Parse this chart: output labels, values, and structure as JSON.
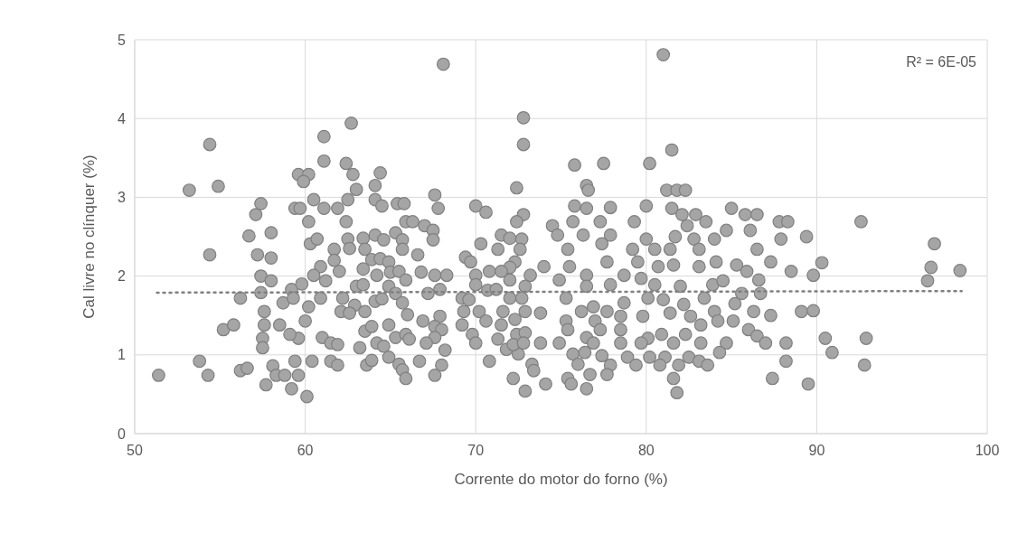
{
  "chart_data": {
    "type": "scatter",
    "xlabel": "Corrente do motor do forno (%)",
    "ylabel": "Cal livre no clínquer (%)",
    "xlim": [
      50,
      100
    ],
    "xticks": [
      50,
      60,
      70,
      80,
      90,
      100
    ],
    "ylim": [
      0,
      5
    ],
    "yticks": [
      0,
      1,
      2,
      3,
      4,
      5
    ],
    "grid": true,
    "annotations": [
      "R² = 6E-05"
    ],
    "series": [
      {
        "color": "#a5a5a5",
        "marker": "circle",
        "x": [
          51.4,
          53.2,
          54.4,
          54.9,
          54.4,
          53.8,
          54.3,
          55.2,
          55.8,
          56.2,
          56.6,
          56.2,
          56.7,
          57.1,
          57.4,
          58.0,
          57.2,
          58.0,
          57.4,
          58.0,
          57.4,
          57.6,
          57.6,
          57.5,
          57.5,
          58.1,
          58.3,
          57.7,
          58.8,
          58.5,
          58.7,
          59.2,
          59.2,
          60.1,
          59.6,
          59.4,
          60.4,
          59.6,
          59.1,
          60.0,
          60.2,
          59.3,
          59.8,
          59.6,
          60.2,
          59.9,
          59.4,
          59.7,
          60.5,
          60.2,
          60.3,
          60.7,
          60.9,
          60.5,
          61.2,
          60.9,
          61.0,
          61.5,
          61.9,
          61.5,
          61.9,
          61.1,
          61.1,
          61.1,
          61.9,
          62.4,
          62.8,
          62.7,
          63.0,
          62.5,
          62.4,
          61.7,
          61.7,
          62.0,
          62.5,
          62.6,
          63.4,
          63.5,
          64.1,
          64.6,
          63.9,
          64.4,
          63.4,
          64.2,
          63.0,
          63.4,
          62.2,
          62.9,
          62.1,
          62.6,
          63.5,
          64.1,
          64.5,
          63.5,
          63.9,
          64.2,
          64.6,
          63.2,
          63.6,
          63.9,
          64.9,
          65.5,
          65.7,
          65.9,
          64.4,
          64.1,
          64.1,
          64.5,
          65.4,
          65.8,
          65.9,
          66.3,
          65.3,
          65.7,
          65.7,
          64.9,
          65.0,
          65.5,
          65.9,
          64.9,
          65.3,
          65.7,
          64.9,
          65.3,
          65.9,
          66.1,
          66.0,
          66.6,
          67.0,
          67.5,
          67.5,
          67.6,
          67.8,
          68.1,
          66.8,
          67.6,
          68.3,
          67.9,
          67.2,
          66.9,
          67.9,
          67.6,
          68.0,
          67.6,
          67.1,
          68.2,
          66.7,
          68.0,
          67.6,
          70.0,
          70.6,
          70.3,
          69.4,
          69.7,
          70.0,
          70.0,
          69.2,
          69.6,
          69.3,
          69.2,
          69.8,
          70.0,
          70.8,
          70.2,
          70.8,
          70.7,
          70.6,
          71.3,
          71.5,
          72.0,
          72.4,
          72.8,
          72.4,
          72.8,
          72.8,
          72.7,
          72.6,
          72.3,
          72.0,
          72.0,
          71.5,
          71.2,
          72.0,
          72.7,
          72.9,
          73.2,
          71.6,
          72.3,
          72.9,
          71.5,
          71.3,
          71.8,
          72.4,
          72.9,
          72.5,
          73.3,
          73.4,
          72.2,
          72.9,
          72.2,
          72.8,
          75.8,
          77.5,
          80.2,
          81.0,
          81.5,
          76.5,
          76.6,
          81.2,
          81.8,
          82.3,
          75.8,
          76.5,
          77.9,
          80.0,
          81.5,
          82.1,
          82.9,
          85.0,
          85.8,
          86.5,
          83.5,
          82.4,
          75.7,
          77.3,
          79.3,
          87.8,
          88.3,
          92.6,
          74.5,
          74.8,
          76.3,
          77.9,
          80.0,
          81.7,
          82.8,
          84.0,
          84.7,
          86.1,
          87.9,
          89.4,
          96.9,
          75.4,
          77.4,
          79.2,
          80.5,
          81.4,
          83.1,
          86.5,
          74.0,
          75.5,
          77.7,
          79.5,
          80.7,
          81.6,
          83.1,
          84.1,
          85.3,
          85.9,
          87.3,
          88.5,
          90.3,
          96.7,
          96.5,
          89.8,
          74.9,
          76.5,
          77.9,
          78.7,
          79.7,
          80.5,
          82.0,
          83.9,
          84.5,
          86.6,
          75.3,
          76.5,
          76.9,
          77.7,
          78.7,
          80.1,
          81.0,
          82.2,
          83.4,
          85.6,
          85.2,
          86.7,
          84.0,
          86.3,
          87.3,
          89.1,
          89.8,
          73.8,
          75.3,
          76.2,
          77.0,
          78.5,
          79.8,
          81.4,
          82.6,
          84.2,
          85.1,
          83.2,
          75.4,
          76.5,
          77.3,
          78.5,
          80.1,
          80.9,
          82.3,
          73.8,
          74.9,
          76.9,
          78.5,
          79.7,
          81.6,
          83.2,
          84.7,
          86.0,
          86.5,
          87.0,
          88.2,
          90.5,
          92.9,
          90.9,
          75.7,
          76.4,
          77.4,
          78.9,
          80.2,
          81.1,
          82.5,
          84.3,
          88.2,
          92.8,
          76.0,
          77.9,
          79.4,
          80.8,
          81.9,
          83.1,
          83.6,
          75.4,
          75.6,
          74.1,
          76.5,
          76.7,
          77.7,
          81.6,
          81.8,
          87.4,
          89.5,
          98.4
        ],
        "values": [
          0.74,
          3.09,
          3.67,
          3.14,
          2.27,
          0.92,
          0.74,
          1.32,
          1.38,
          0.8,
          0.83,
          1.72,
          2.51,
          2.78,
          2.92,
          2.55,
          2.27,
          2.23,
          2.0,
          1.94,
          1.79,
          1.55,
          1.38,
          1.21,
          1.09,
          0.86,
          0.74,
          0.62,
          0.74,
          1.38,
          1.66,
          1.83,
          0.57,
          0.47,
          0.74,
          0.92,
          0.92,
          1.21,
          1.26,
          1.43,
          1.61,
          1.72,
          1.9,
          3.29,
          3.29,
          3.2,
          2.86,
          2.86,
          2.97,
          2.69,
          2.41,
          2.47,
          2.12,
          2.01,
          1.94,
          1.72,
          1.22,
          1.15,
          1.13,
          0.92,
          0.87,
          3.77,
          3.46,
          2.86,
          2.86,
          3.43,
          3.29,
          3.94,
          3.1,
          2.97,
          2.69,
          2.34,
          2.2,
          2.06,
          2.47,
          2.35,
          2.48,
          2.34,
          2.52,
          2.46,
          2.21,
          2.22,
          2.09,
          2.01,
          1.87,
          1.89,
          1.72,
          1.63,
          1.55,
          1.53,
          1.55,
          1.68,
          1.71,
          1.3,
          1.36,
          1.15,
          1.11,
          1.09,
          0.87,
          0.93,
          0.97,
          0.88,
          0.81,
          0.7,
          3.31,
          3.15,
          2.97,
          2.89,
          2.92,
          2.92,
          2.69,
          2.69,
          2.55,
          2.46,
          2.34,
          2.18,
          2.05,
          2.06,
          1.95,
          1.87,
          1.78,
          1.66,
          1.38,
          1.22,
          1.26,
          1.2,
          1.51,
          2.27,
          2.64,
          2.58,
          2.46,
          3.03,
          2.86,
          4.69,
          2.05,
          2.01,
          2.01,
          1.83,
          1.78,
          1.43,
          1.49,
          1.36,
          1.32,
          1.22,
          1.15,
          1.06,
          0.92,
          0.87,
          0.74,
          2.89,
          2.81,
          2.41,
          2.24,
          2.18,
          2.01,
          1.89,
          1.72,
          1.7,
          1.55,
          1.38,
          1.26,
          1.15,
          0.92,
          1.55,
          2.06,
          1.82,
          1.43,
          2.34,
          2.52,
          2.48,
          3.12,
          2.78,
          2.69,
          4.01,
          3.67,
          2.47,
          2.34,
          2.18,
          2.11,
          1.95,
          2.06,
          1.83,
          1.72,
          1.72,
          1.87,
          2.01,
          1.55,
          1.45,
          1.55,
          1.38,
          1.2,
          1.07,
          1.26,
          1.28,
          1.01,
          0.88,
          0.8,
          0.7,
          0.54,
          1.13,
          1.15,
          3.41,
          3.43,
          3.43,
          4.81,
          3.6,
          3.15,
          3.09,
          3.09,
          3.09,
          3.09,
          2.89,
          2.86,
          2.87,
          2.89,
          2.86,
          2.78,
          2.78,
          2.86,
          2.78,
          2.78,
          2.69,
          2.64,
          2.69,
          2.69,
          2.69,
          2.69,
          2.69,
          2.69,
          2.64,
          2.52,
          2.52,
          2.52,
          2.47,
          2.5,
          2.47,
          2.47,
          2.58,
          2.58,
          2.47,
          2.5,
          2.41,
          2.34,
          2.41,
          2.34,
          2.34,
          2.34,
          2.34,
          2.34,
          2.12,
          2.12,
          2.18,
          2.18,
          2.12,
          2.14,
          2.12,
          2.18,
          2.14,
          2.06,
          2.18,
          2.06,
          2.17,
          2.11,
          1.94,
          2.01,
          1.95,
          2.01,
          1.89,
          2.01,
          1.97,
          1.89,
          1.87,
          1.89,
          1.94,
          1.95,
          1.72,
          1.87,
          1.61,
          1.55,
          1.66,
          1.72,
          1.7,
          1.64,
          1.72,
          1.78,
          1.65,
          1.78,
          1.55,
          1.55,
          1.5,
          1.55,
          1.56,
          1.53,
          1.43,
          1.55,
          1.43,
          1.49,
          1.49,
          1.53,
          1.49,
          1.43,
          1.43,
          1.38,
          1.32,
          1.22,
          1.32,
          1.32,
          1.21,
          1.26,
          1.26,
          1.15,
          1.15,
          1.15,
          1.15,
          1.15,
          1.15,
          1.15,
          1.15,
          1.32,
          1.24,
          1.15,
          1.15,
          1.21,
          1.21,
          1.03,
          1.01,
          1.03,
          0.99,
          0.97,
          0.97,
          0.97,
          0.97,
          1.03,
          0.92,
          0.87,
          0.88,
          0.87,
          0.87,
          0.87,
          0.87,
          0.92,
          0.87,
          0.7,
          0.63,
          0.63,
          0.57,
          0.75,
          0.75,
          0.7,
          0.52,
          0.7,
          0.63,
          2.07
        ]
      },
      {
        "type": "line",
        "color": "#808080",
        "line_style": "dotted",
        "x": [
          51.3,
          98.5
        ],
        "values": [
          1.79,
          1.81
        ]
      }
    ]
  }
}
